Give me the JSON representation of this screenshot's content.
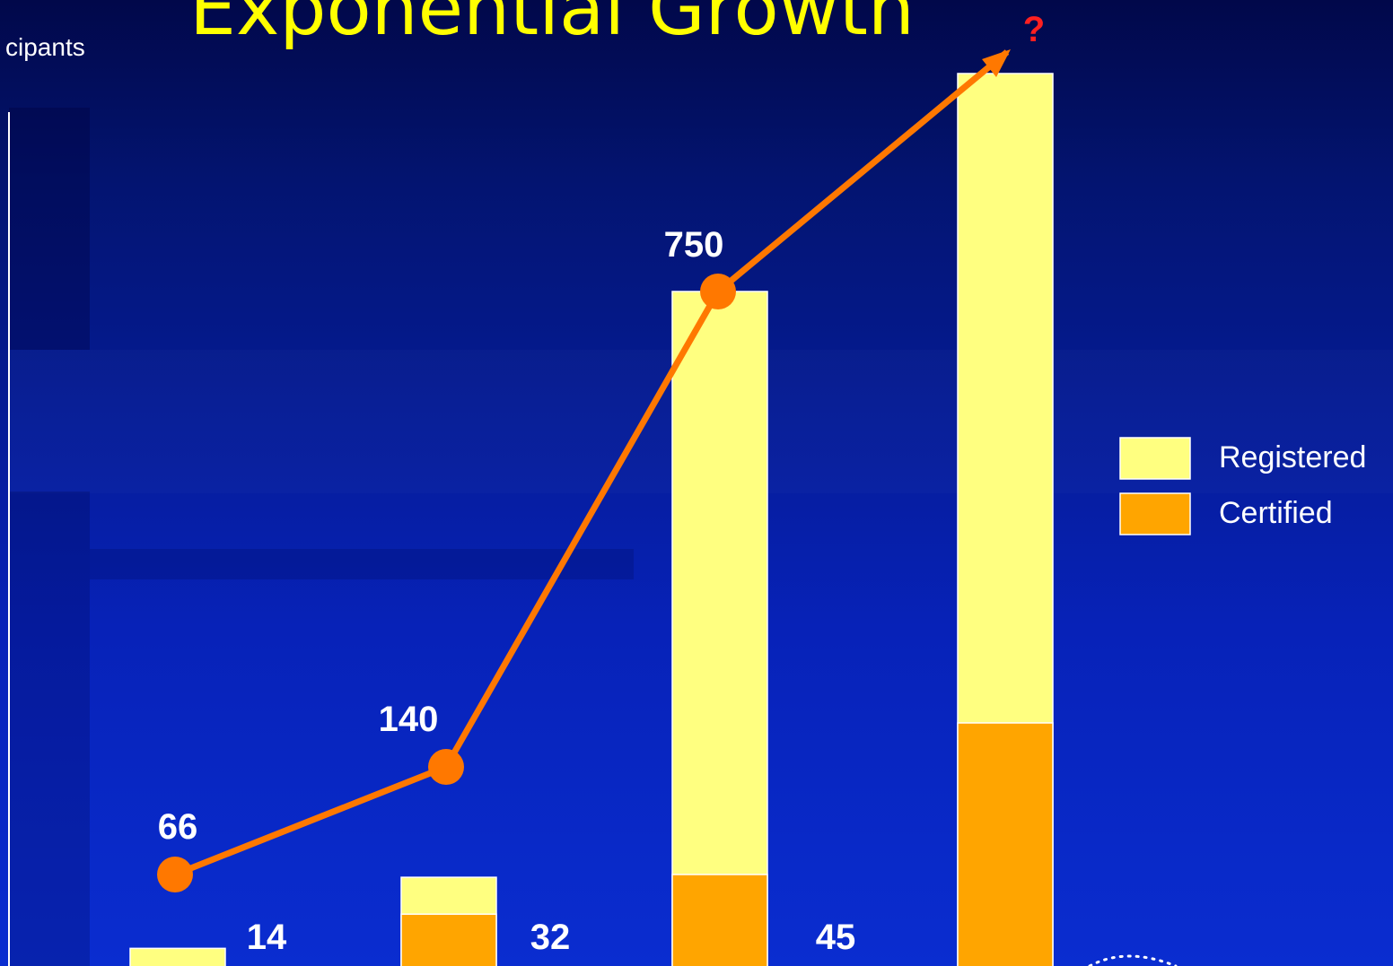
{
  "slide": {
    "title": "Exponential Growth",
    "question_mark": "?"
  },
  "chart_data": {
    "type": "bar",
    "ylabel": "cipants",
    "categories": [
      "",
      "",
      "",
      ""
    ],
    "series": [
      {
        "name": "Registered",
        "values": [
          66,
          140,
          750,
          null
        ]
      },
      {
        "name": "Certified",
        "values": [
          14,
          32,
          45,
          null
        ]
      }
    ],
    "data_labels": {
      "registered": [
        "66",
        "140",
        "750",
        ""
      ],
      "certified": [
        "14",
        "32",
        "45",
        ""
      ]
    },
    "trend_line": {
      "through": "registered",
      "extrapolated": true,
      "end_label": "?"
    },
    "legend": {
      "position": "right"
    }
  },
  "colors": {
    "registered": "#ffff80",
    "certified": "#ffa500",
    "trend": "#ff7800",
    "title": "#ffff00",
    "question": "#ff2020",
    "label": "#ffffff"
  }
}
